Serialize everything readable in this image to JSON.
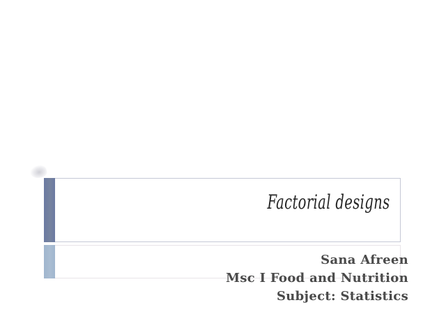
{
  "slide": {
    "title_box": {
      "title": "Factorial designs"
    },
    "subtitle_box": {
      "lines": [
        "Sana Afreen",
        "Msc I Food and Nutrition",
        "Subject: Statistics"
      ]
    },
    "colors": {
      "background": "#ffffff",
      "title_bar_accent": "#6b7aa2",
      "subtitle_bar_accent": "#a0b6ce",
      "title_box_border": "#c5c8d6",
      "subtitle_box_border": "#e8e4e8",
      "title_text": "#262626",
      "subtitle_text": "#4a4a4a"
    }
  }
}
